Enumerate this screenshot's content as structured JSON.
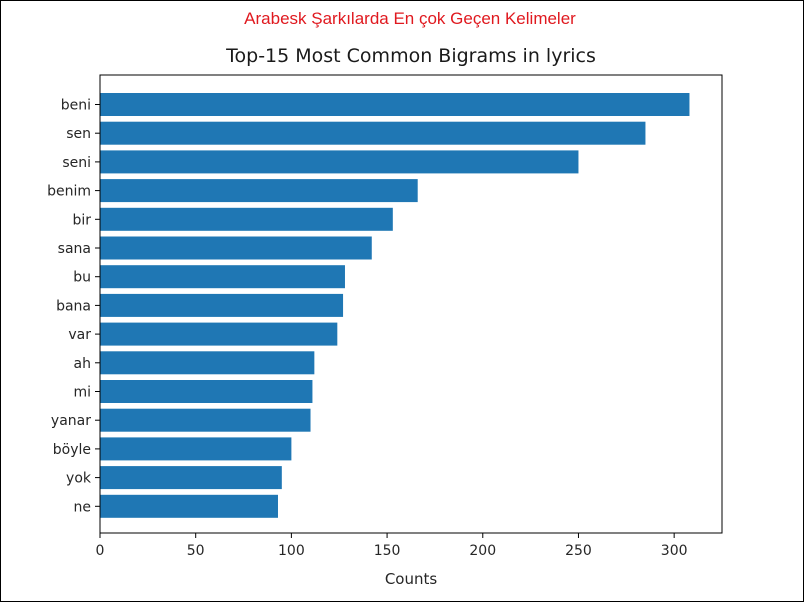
{
  "banner": {
    "text": "Arabesk Şarkılarda En çok Geçen Kelimeler",
    "color": "#e0191f"
  },
  "chart_data": {
    "type": "bar",
    "orientation": "horizontal",
    "title": "Top-15 Most Common Bigrams in lyrics",
    "xlabel": "Counts",
    "ylabel": "",
    "categories": [
      "beni",
      "sen",
      "seni",
      "benim",
      "bir",
      "sana",
      "bu",
      "bana",
      "var",
      "ah",
      "mi",
      "yanar",
      "böyle",
      "yok",
      "ne"
    ],
    "values": [
      308,
      285,
      250,
      166,
      153,
      142,
      128,
      127,
      124,
      112,
      111,
      110,
      100,
      95,
      93
    ],
    "xlim": [
      0,
      325
    ],
    "xticks": [
      0,
      50,
      100,
      150,
      200,
      250,
      300
    ],
    "bar_color": "#1f77b4",
    "grid": false,
    "legend": "none"
  }
}
